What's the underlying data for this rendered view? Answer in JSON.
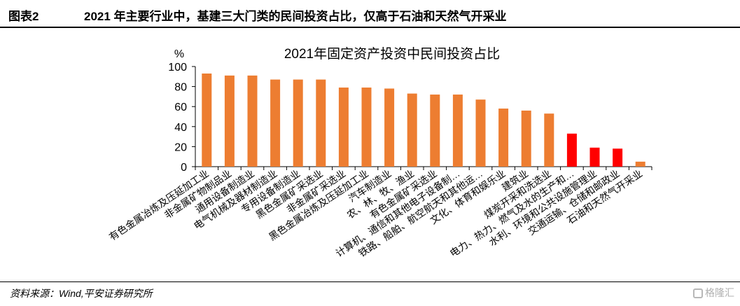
{
  "header": {
    "figure_label": "图表2",
    "figure_title": "2021 年主要行业中，基建三大门类的民间投资占比，仅高于石油和天然气开采业"
  },
  "footer": {
    "source": "资料来源：Wind,平安证券研究所",
    "watermark": "格隆汇"
  },
  "colors": {
    "orange": "#ED7D31",
    "red": "#FF0000",
    "axis": "#000000"
  },
  "chart_data": {
    "type": "bar",
    "title": "2021年固定资产投资中民间投资占比",
    "unit_label": "%",
    "ylim": [
      0,
      100
    ],
    "yticks": [
      0,
      20,
      40,
      60,
      80,
      100
    ],
    "grid": false,
    "categories": [
      "有色金属冶炼及压延加工业",
      "非金属矿物制品业",
      "通用设备制造业",
      "电气机械及器材制造业",
      "专用设备制造业",
      "黑色金属矿采选业",
      "非金属矿采选业",
      "黑色金属冶炼及压延加工业",
      "汽车制造业",
      "农、林、牧、渔业",
      "有色金属矿采选业",
      "计算机、通信和其他电子设备制…",
      "铁路、船舶、航空航天和其他运…",
      "文化、体育和娱乐业",
      "建筑业",
      "煤炭开采和洗选业",
      "电力、热力、燃气及水的生产和…",
      "水利、环境和公共设施管理业",
      "交通运输、仓储和邮政业",
      "石油和天然气开采业"
    ],
    "values": [
      93,
      91,
      91,
      87,
      87,
      87,
      79,
      79,
      78,
      73,
      72,
      72,
      67,
      58,
      56,
      53,
      33,
      19,
      18,
      5
    ],
    "colors": [
      "orange",
      "orange",
      "orange",
      "orange",
      "orange",
      "orange",
      "orange",
      "orange",
      "orange",
      "orange",
      "orange",
      "orange",
      "orange",
      "orange",
      "orange",
      "orange",
      "red",
      "red",
      "red",
      "orange"
    ]
  }
}
